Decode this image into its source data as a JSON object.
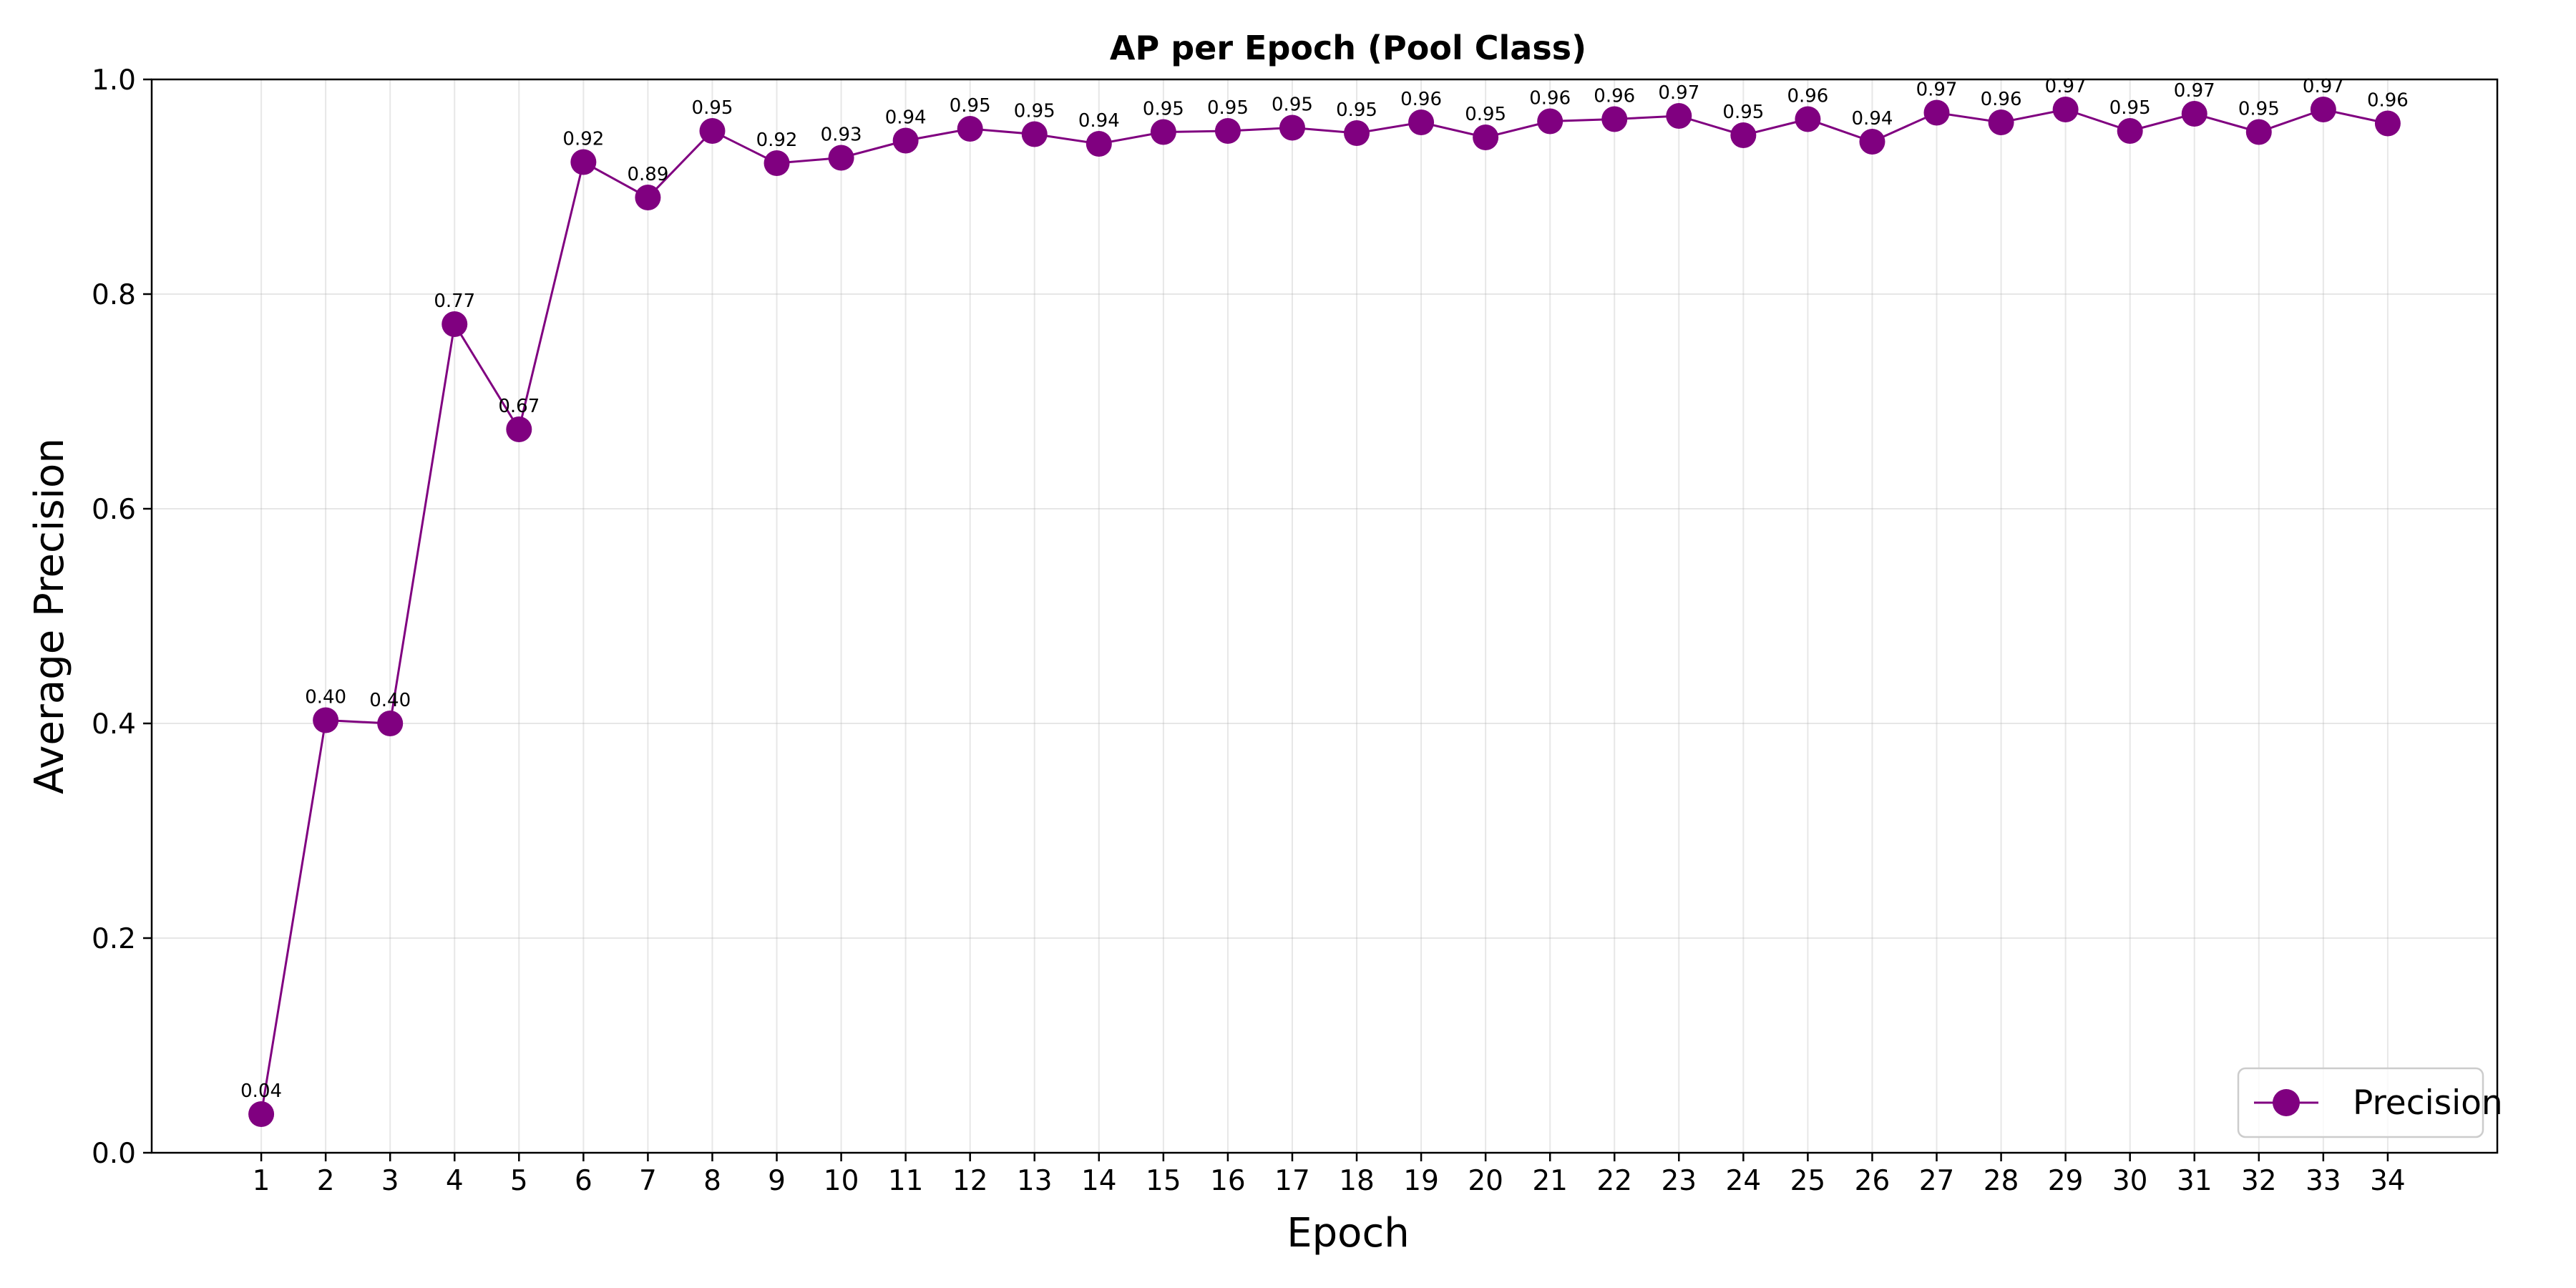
{
  "chart_data": {
    "type": "line",
    "title": "AP per Epoch (Pool Class)",
    "xlabel": "Epoch",
    "ylabel": "Average Precision",
    "x": [
      1,
      2,
      3,
      4,
      5,
      6,
      7,
      8,
      9,
      10,
      11,
      12,
      13,
      14,
      15,
      16,
      17,
      18,
      19,
      20,
      21,
      22,
      23,
      24,
      25,
      26,
      27,
      28,
      29,
      30,
      31,
      32,
      33,
      34
    ],
    "xlim": [
      -0.7,
      35.7
    ],
    "ylim": [
      0.0,
      1.0
    ],
    "yticks": [
      "0.0",
      "0.2",
      "0.4",
      "0.6",
      "0.8",
      "1.0"
    ],
    "grid": true,
    "legend_position": "lower right",
    "series": [
      {
        "name": "Precision",
        "color": "#800080",
        "marker": "circle",
        "values": [
          0.036,
          0.403,
          0.4,
          0.772,
          0.674,
          0.923,
          0.89,
          0.952,
          0.922,
          0.927,
          0.943,
          0.954,
          0.949,
          0.94,
          0.951,
          0.952,
          0.955,
          0.95,
          0.96,
          0.946,
          0.961,
          0.963,
          0.966,
          0.948,
          0.963,
          0.942,
          0.969,
          0.96,
          0.972,
          0.952,
          0.968,
          0.951,
          0.972,
          0.959
        ],
        "labels": [
          "0.04",
          "0.40",
          "0.40",
          "0.77",
          "0.67",
          "0.92",
          "0.89",
          "0.95",
          "0.92",
          "0.93",
          "0.94",
          "0.95",
          "0.95",
          "0.94",
          "0.95",
          "0.95",
          "0.95",
          "0.95",
          "0.96",
          "0.95",
          "0.96",
          "0.96",
          "0.97",
          "0.95",
          "0.96",
          "0.94",
          "0.97",
          "0.96",
          "0.97",
          "0.95",
          "0.97",
          "0.95",
          "0.97",
          "0.96"
        ]
      }
    ]
  }
}
